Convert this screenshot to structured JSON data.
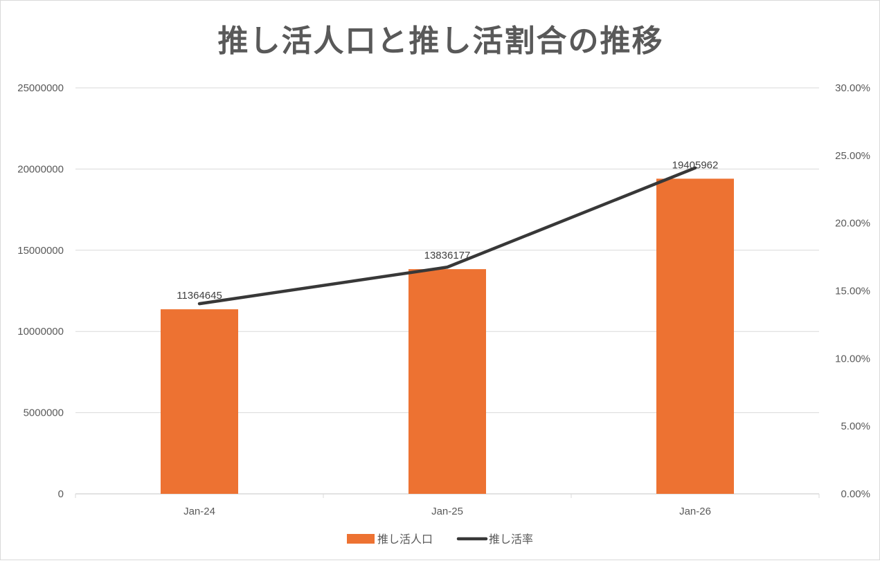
{
  "chart_data": {
    "type": "bar",
    "title": "推し活人口と推し活割合の推移",
    "categories": [
      "Jan-24",
      "Jan-25",
      "Jan-26"
    ],
    "series": [
      {
        "name": "推し活人口",
        "type": "bar",
        "axis": "left",
        "color": "#ed7232",
        "values": [
          11364645,
          13836177,
          19405962
        ],
        "data_labels": [
          "11364645",
          "13836177",
          "19405962"
        ]
      },
      {
        "name": "推し活率",
        "type": "line",
        "axis": "right",
        "color": "#383838",
        "values": [
          0.1405,
          0.1675,
          0.2408
        ]
      }
    ],
    "y_left": {
      "min": 0,
      "max": 25000000,
      "ticks": [
        0,
        5000000,
        10000000,
        15000000,
        20000000,
        25000000
      ],
      "tick_labels": [
        "0",
        "5000000",
        "10000000",
        "15000000",
        "20000000",
        "25000000"
      ]
    },
    "y_right": {
      "min": 0,
      "max": 0.3,
      "ticks": [
        0,
        0.05,
        0.1,
        0.15,
        0.2,
        0.25,
        0.3
      ],
      "tick_labels": [
        "0.00%",
        "5.00%",
        "10.00%",
        "15.00%",
        "20.00%",
        "25.00%",
        "30.00%"
      ]
    },
    "grid": true,
    "legend": "bottom",
    "colors": {
      "gridline": "#d9d9d9",
      "axis_text": "#595959",
      "title": "#595959"
    }
  }
}
